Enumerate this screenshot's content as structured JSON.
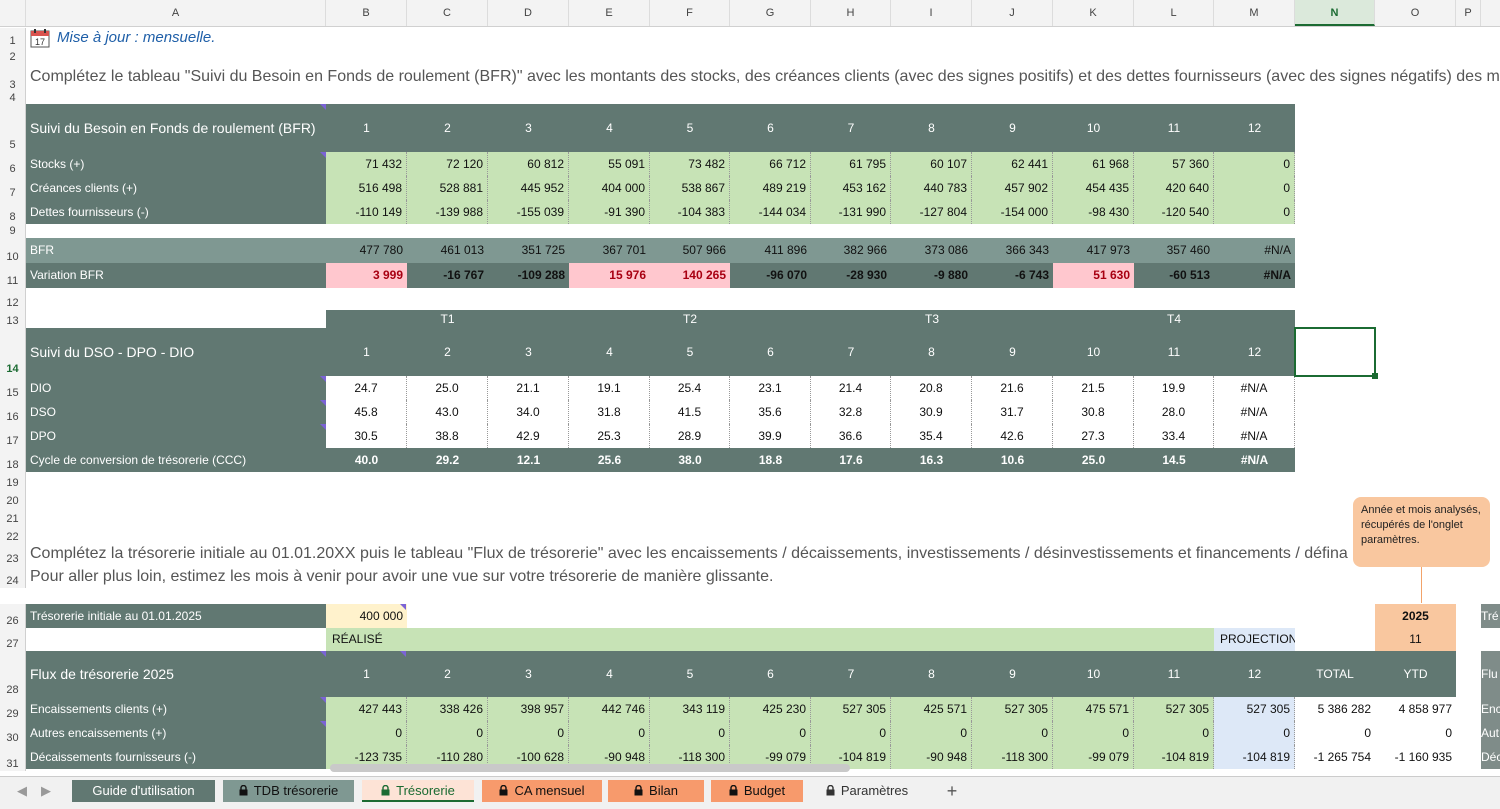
{
  "columns": [
    "A",
    "B",
    "C",
    "D",
    "E",
    "F",
    "G",
    "H",
    "I",
    "J",
    "K",
    "L",
    "M",
    "N",
    "O",
    "P"
  ],
  "selected_column": "N",
  "selected_row": "14",
  "row_numbers": [
    "1",
    "2",
    "3",
    "4",
    "5",
    "6",
    "7",
    "8",
    "9",
    "10",
    "11",
    "12",
    "13",
    "14",
    "15",
    "16",
    "17",
    "18",
    "19",
    "20",
    "21",
    "22",
    "23",
    "24",
    "26",
    "27",
    "28",
    "29",
    "30",
    "31"
  ],
  "header_note": "Mise à jour : mensuelle.",
  "instruction_bfr": "Complétez le tableau \"Suivi du Besoin en Fonds de roulement (BFR)\" avec les montants des stocks, des créances clients (avec des signes positifs) et des dettes fournisseurs (avec des signes négatifs) des mois r",
  "bfr_table": {
    "title": "Suivi du Besoin en Fonds de roulement (BFR)",
    "months": [
      "1",
      "2",
      "3",
      "4",
      "5",
      "6",
      "7",
      "8",
      "9",
      "10",
      "11",
      "12"
    ],
    "rows": [
      {
        "label": "Stocks (+)",
        "values": [
          "71 432",
          "72 120",
          "60 812",
          "55 091",
          "73 482",
          "66 712",
          "61 795",
          "60 107",
          "62 441",
          "61 968",
          "57 360",
          "0"
        ]
      },
      {
        "label": "Créances clients (+)",
        "values": [
          "516 498",
          "528 881",
          "445 952",
          "404 000",
          "538 867",
          "489 219",
          "453 162",
          "440 783",
          "457 902",
          "454 435",
          "420 640",
          "0"
        ]
      },
      {
        "label": "Dettes fournisseurs (-)",
        "values": [
          "-110 149",
          "-139 988",
          "-155 039",
          "-91 390",
          "-104 383",
          "-144 034",
          "-131 990",
          "-127 804",
          "-154 000",
          "-98 430",
          "-120 540",
          "0"
        ]
      }
    ],
    "bfr_label": "BFR",
    "bfr_values": [
      "477 780",
      "461 013",
      "351 725",
      "367 701",
      "507 966",
      "411 896",
      "382 966",
      "373 086",
      "366 343",
      "417 973",
      "357 460",
      "#N/A"
    ],
    "variation_label": "Variation BFR",
    "variation_values": [
      "3 999",
      "-16 767",
      "-109 288",
      "15 976",
      "140 265",
      "-96 070",
      "-28 930",
      "-9 880",
      "-6 743",
      "51 630",
      "-60 513",
      "#N/A"
    ]
  },
  "dso_table": {
    "quarters": [
      "T1",
      "T2",
      "T3",
      "T4"
    ],
    "title": "Suivi du DSO - DPO - DIO",
    "months": [
      "1",
      "2",
      "3",
      "4",
      "5",
      "6",
      "7",
      "8",
      "9",
      "10",
      "11",
      "12"
    ],
    "rows": [
      {
        "label": "DIO",
        "values": [
          "24.7",
          "25.0",
          "21.1",
          "19.1",
          "25.4",
          "23.1",
          "21.4",
          "20.8",
          "21.6",
          "21.5",
          "19.9",
          "#N/A"
        ]
      },
      {
        "label": "DSO",
        "values": [
          "45.8",
          "43.0",
          "34.0",
          "31.8",
          "41.5",
          "35.6",
          "32.8",
          "30.9",
          "31.7",
          "30.8",
          "28.0",
          "#N/A"
        ]
      },
      {
        "label": "DPO",
        "values": [
          "30.5",
          "38.8",
          "42.9",
          "25.3",
          "28.9",
          "39.9",
          "36.6",
          "35.4",
          "42.6",
          "27.3",
          "33.4",
          "#N/A"
        ]
      }
    ],
    "ccc_label": "Cycle de conversion de trésorerie (CCC)",
    "ccc_values": [
      "40.0",
      "29.2",
      "12.1",
      "25.6",
      "38.0",
      "18.8",
      "17.6",
      "16.3",
      "10.6",
      "25.0",
      "14.5",
      "#N/A"
    ]
  },
  "instruction_treso_1": "Complétez la trésorerie initiale au 01.01.20XX puis le tableau \"Flux de trésorerie\" avec les encaissements / décaissements, investissements / désinvestissements et financements / défina",
  "instruction_treso_2": "Pour aller plus loin, estimez les mois à venir pour avoir une vue sur votre trésorerie de manière glissante.",
  "callout": "Année et mois analysés, récupérés de l'onglet paramètres.",
  "treso_initial": {
    "label": "Trésorerie initiale au 01.01.2025",
    "value": "400 000"
  },
  "year_box": {
    "year": "2025",
    "month": "11"
  },
  "realise_label": "RÉALISÉ",
  "projection_label": "PROJECTION",
  "flux_table": {
    "title": "Flux de trésorerie 2025",
    "months": [
      "1",
      "2",
      "3",
      "4",
      "5",
      "6",
      "7",
      "8",
      "9",
      "10",
      "11",
      "12"
    ],
    "total_label": "TOTAL",
    "ytd_label": "YTD",
    "rows": [
      {
        "label": "Encaissements clients (+)",
        "values": [
          "427 443",
          "338 426",
          "398 957",
          "442 746",
          "343 119",
          "425 230",
          "527 305",
          "425 571",
          "527 305",
          "475 571",
          "527 305",
          "527 305"
        ],
        "total": "5 386 282",
        "ytd": "4 858 977"
      },
      {
        "label": "Autres encaissements (+)",
        "values": [
          "0",
          "0",
          "0",
          "0",
          "0",
          "0",
          "0",
          "0",
          "0",
          "0",
          "0",
          "0"
        ],
        "total": "0",
        "ytd": "0"
      },
      {
        "label": "Décaissements fournisseurs (-)",
        "values": [
          "-123 735",
          "-110 280",
          "-100 628",
          "-90 948",
          "-118 300",
          "-99 079",
          "-104 819",
          "-90 948",
          "-118 300",
          "-99 079",
          "-104 819",
          "-104 819"
        ],
        "total": "-1 265 754",
        "ytd": "-1 160 935"
      }
    ]
  },
  "side_cut_labels": [
    "Tré",
    "Flu",
    "Enc",
    "Aut",
    "Déc"
  ],
  "tabs": [
    {
      "label": "Guide d'utilisation",
      "locked": false,
      "style": "dark"
    },
    {
      "label": "TDB trésorerie",
      "locked": true,
      "style": "teal"
    },
    {
      "label": "Trésorerie",
      "locked": true,
      "style": "active"
    },
    {
      "label": "CA mensuel",
      "locked": true,
      "style": "orange"
    },
    {
      "label": "Bilan",
      "locked": true,
      "style": "orange"
    },
    {
      "label": "Budget",
      "locked": true,
      "style": "orange"
    },
    {
      "label": "Paramètres",
      "locked": true,
      "style": "plain"
    }
  ],
  "add_sheet": "+",
  "colors": {
    "dark": "#617872",
    "green": "#c7e3b6",
    "pink": "#ffc7ce",
    "orange": "#f9c79f",
    "selection": "#1b6b32"
  }
}
